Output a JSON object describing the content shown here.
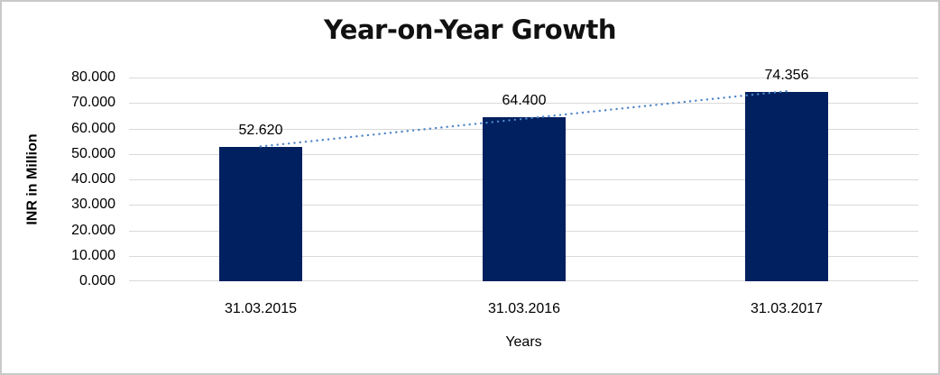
{
  "window": {
    "background": "#ffffff",
    "border_color": "#c9c9c9"
  },
  "chart_data": {
    "type": "bar",
    "title": "Year-on-Year Growth",
    "xlabel": "Years",
    "ylabel": "INR in Million",
    "categories": [
      "31.03.2015",
      "31.03.2016",
      "31.03.2017"
    ],
    "series": [
      {
        "name": "INR in Million",
        "values": [
          52.62,
          64.4,
          74.356
        ]
      }
    ],
    "data_labels": [
      "52.620",
      "64.400",
      "74.356"
    ],
    "ylim": [
      0,
      80
    ],
    "ytick_step": 10,
    "ytick_labels": [
      "0.000",
      "10.000",
      "20.000",
      "30.000",
      "40.000",
      "50.000",
      "60.000",
      "70.000",
      "80.000"
    ],
    "grid": true,
    "legend": "none",
    "bar_color": "#002060",
    "gridline_color": "#d9d9d9",
    "text_color": "#000000",
    "trendline": {
      "type": "linear",
      "style": "dotted",
      "color": "#4e86c8"
    }
  }
}
